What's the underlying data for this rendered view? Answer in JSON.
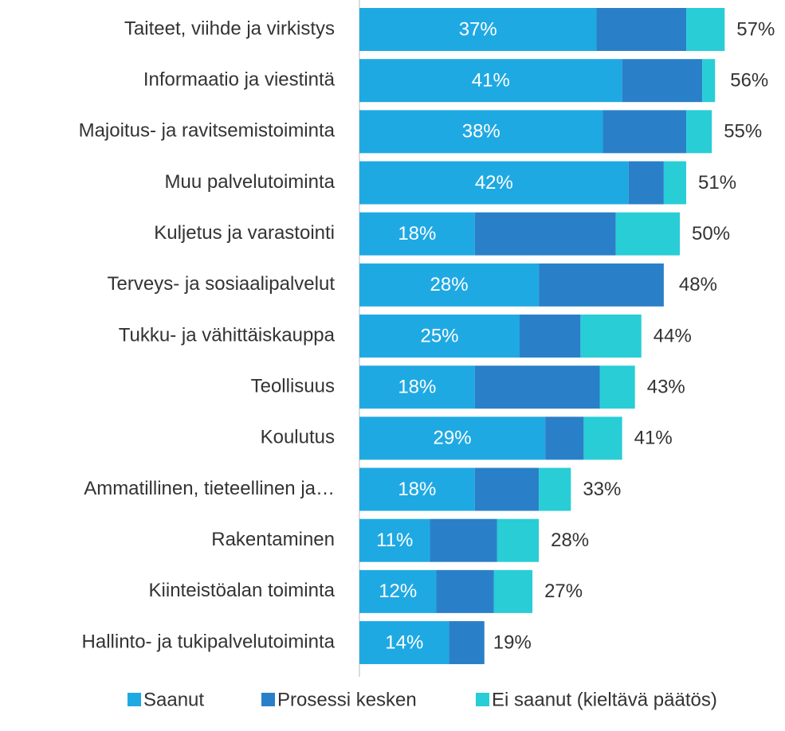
{
  "chart_data": {
    "type": "stacked-bar-horizontal",
    "categories": [
      "Taiteet, viihde ja virkistys",
      "Informaatio ja viestintä",
      "Majoitus- ja ravitsemistoiminta",
      "Muu palvelutoiminta",
      "Kuljetus ja varastointi",
      "Terveys- ja sosiaalipalvelut",
      "Tukku- ja vähittäiskauppa",
      "Teollisuus",
      "Koulutus",
      "Ammatillinen, tieteellinen ja…",
      "Rakentaminen",
      "Kiinteistöalan toiminta",
      "Hallinto- ja tukipalvelutoiminta"
    ],
    "series": [
      {
        "name": "Saanut",
        "color": "#1fa9e3",
        "values": [
          37,
          41,
          38,
          42,
          18,
          28,
          25,
          18,
          29,
          18,
          11,
          12,
          14
        ],
        "value_labels": [
          "37%",
          "41%",
          "38%",
          "42%",
          "18%",
          "28%",
          "25%",
          "18%",
          "29%",
          "18%",
          "11%",
          "12%",
          "14%"
        ]
      },
      {
        "name": "Prosessi kesken",
        "color": "#2a80c8",
        "values": [
          14,
          12.5,
          13,
          5.5,
          22,
          19.5,
          9.5,
          19.5,
          6,
          10,
          10.5,
          9,
          5.5
        ]
      },
      {
        "name": "Ei saanut (kieltävä päätös)",
        "color": "#28cdd6",
        "values": [
          6,
          2,
          4,
          3.5,
          10,
          0,
          9.5,
          5.5,
          6,
          5,
          6.5,
          6,
          0
        ]
      }
    ],
    "totals": [
      57,
      56,
      55,
      51,
      50,
      48,
      44,
      43,
      41,
      33,
      28,
      27,
      19
    ],
    "total_labels": [
      "57%",
      "56%",
      "55%",
      "51%",
      "50%",
      "48%",
      "44%",
      "43%",
      "41%",
      "33%",
      "28%",
      "27%",
      "19%"
    ],
    "legend": "bottom"
  }
}
